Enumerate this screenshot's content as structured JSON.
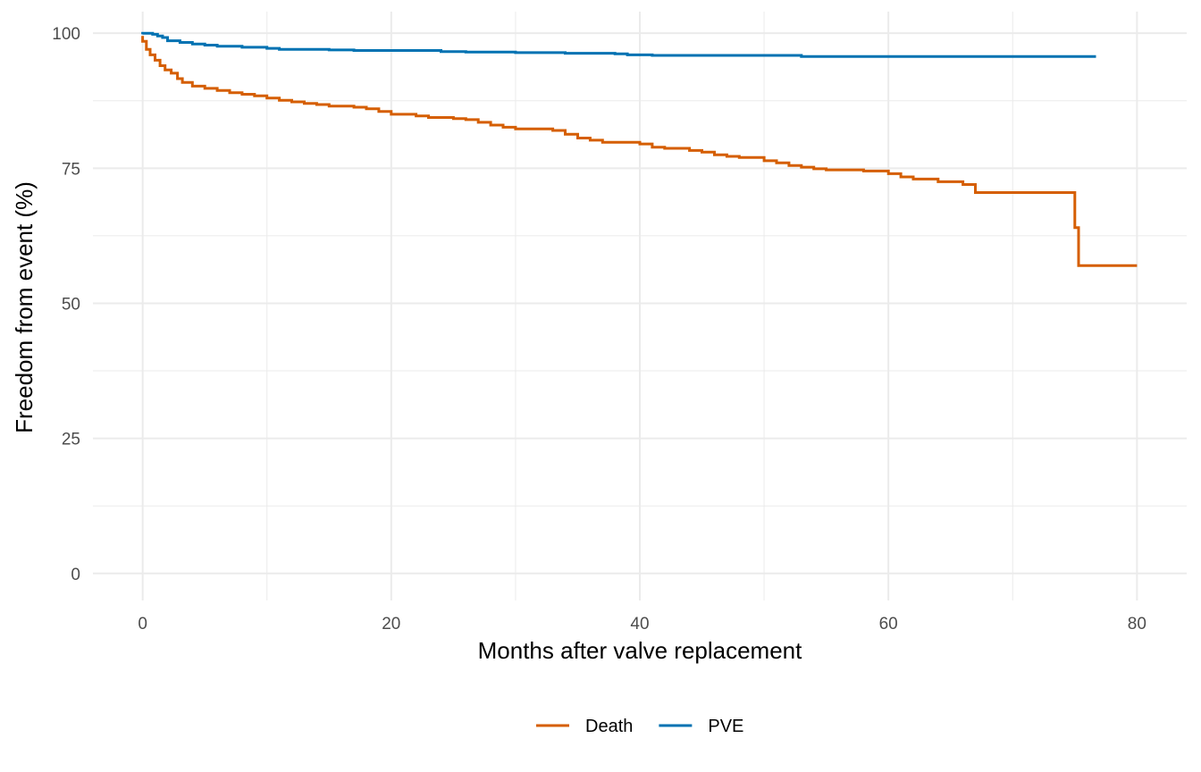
{
  "chart_data": {
    "type": "line",
    "subtype": "step",
    "title": "",
    "xlabel": "Months after valve replacement",
    "ylabel": "Freedom from event (%)",
    "xlim": [
      -4,
      84
    ],
    "ylim": [
      -5,
      104
    ],
    "x_ticks": [
      0,
      20,
      40,
      60,
      80
    ],
    "x_minor": [
      10,
      30,
      50,
      70
    ],
    "y_ticks": [
      0,
      25,
      50,
      75,
      100
    ],
    "y_minor": [
      12.5,
      37.5,
      62.5,
      87.5
    ],
    "grid": true,
    "legend_position": "bottom",
    "series": [
      {
        "name": "Death",
        "color": "#d55e00",
        "points": [
          [
            0,
            99.5
          ],
          [
            0,
            98.5
          ],
          [
            0.3,
            97
          ],
          [
            0.6,
            96
          ],
          [
            1,
            95
          ],
          [
            1.4,
            94
          ],
          [
            1.8,
            93.2
          ],
          [
            2.3,
            92.6
          ],
          [
            2.8,
            91.6
          ],
          [
            3.2,
            90.9
          ],
          [
            4,
            90.2
          ],
          [
            5,
            89.8
          ],
          [
            6,
            89.4
          ],
          [
            7,
            89
          ],
          [
            8,
            88.7
          ],
          [
            9,
            88.4
          ],
          [
            10,
            88
          ],
          [
            11,
            87.6
          ],
          [
            12,
            87.3
          ],
          [
            13,
            87
          ],
          [
            14,
            86.8
          ],
          [
            15,
            86.5
          ],
          [
            17,
            86.3
          ],
          [
            18,
            86
          ],
          [
            19,
            85.5
          ],
          [
            20,
            85
          ],
          [
            22,
            84.7
          ],
          [
            23,
            84.4
          ],
          [
            25,
            84.2
          ],
          [
            26,
            84
          ],
          [
            27,
            83.5
          ],
          [
            28,
            83
          ],
          [
            29,
            82.6
          ],
          [
            30,
            82.3
          ],
          [
            33,
            82
          ],
          [
            34,
            81.3
          ],
          [
            35,
            80.6
          ],
          [
            36,
            80.2
          ],
          [
            37,
            79.8
          ],
          [
            40,
            79.5
          ],
          [
            41,
            78.9
          ],
          [
            42,
            78.7
          ],
          [
            44,
            78.3
          ],
          [
            45,
            78
          ],
          [
            46,
            77.5
          ],
          [
            47,
            77.2
          ],
          [
            48,
            77
          ],
          [
            50,
            76.4
          ],
          [
            51,
            76
          ],
          [
            52,
            75.5
          ],
          [
            53,
            75.2
          ],
          [
            54,
            74.9
          ],
          [
            55,
            74.7
          ],
          [
            58,
            74.5
          ],
          [
            60,
            74
          ],
          [
            61,
            73.4
          ],
          [
            62,
            73
          ],
          [
            64,
            72.5
          ],
          [
            66,
            72
          ],
          [
            67,
            71.5
          ],
          [
            67,
            70.5
          ],
          [
            75,
            70.5
          ],
          [
            75,
            64
          ],
          [
            75.3,
            64
          ],
          [
            75.3,
            57
          ],
          [
            80,
            57
          ]
        ]
      },
      {
        "name": "PVE",
        "color": "#0072b2",
        "points": [
          [
            0,
            99.8
          ],
          [
            0,
            100
          ],
          [
            0.8,
            99.8
          ],
          [
            1.2,
            99.5
          ],
          [
            1.6,
            99.2
          ],
          [
            2,
            98.6
          ],
          [
            3,
            98.3
          ],
          [
            4,
            98
          ],
          [
            5,
            97.8
          ],
          [
            6,
            97.6
          ],
          [
            8,
            97.4
          ],
          [
            10,
            97.2
          ],
          [
            11,
            97
          ],
          [
            15,
            96.9
          ],
          [
            17,
            96.8
          ],
          [
            24,
            96.6
          ],
          [
            26,
            96.5
          ],
          [
            30,
            96.4
          ],
          [
            34,
            96.3
          ],
          [
            38,
            96.2
          ],
          [
            39,
            96
          ],
          [
            41,
            95.9
          ],
          [
            53,
            95.7
          ],
          [
            76.7,
            95.7
          ]
        ]
      }
    ]
  }
}
